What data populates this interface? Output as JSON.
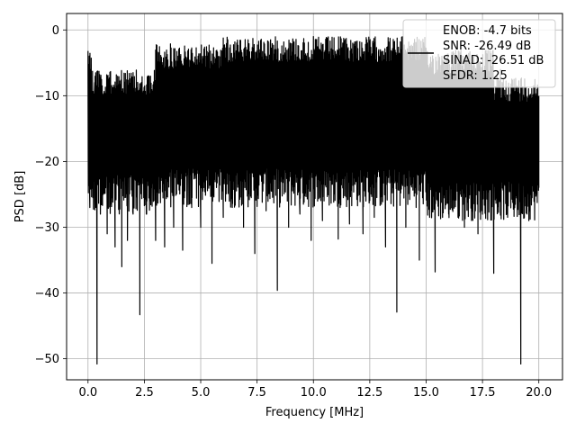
{
  "chart_data": {
    "type": "line",
    "title": "",
    "xlabel": "Frequency [MHz]",
    "ylabel": "PSD [dB]",
    "xlim": [
      -0.95,
      21.05
    ],
    "ylim": [
      -53.2,
      2.5
    ],
    "xticks": [
      "0.0",
      "2.5",
      "5.0",
      "7.5",
      "10.0",
      "12.5",
      "15.0",
      "17.5",
      "20.0"
    ],
    "xtick_values": [
      0,
      2.5,
      5,
      7.5,
      10,
      12.5,
      15,
      17.5,
      20
    ],
    "yticks": [
      "0",
      "−10",
      "−20",
      "−30",
      "−40",
      "−50"
    ],
    "ytick_values": [
      0,
      -10,
      -20,
      -30,
      -40,
      -50
    ],
    "grid": true,
    "line_color": "#000000",
    "legend": {
      "placement": "upper right",
      "entries": [
        "ENOB: -4.7 bits",
        "SNR: -26.49 dB",
        "SINAD: -26.51 dB",
        "SFDR: 1.25"
      ]
    },
    "series": [
      {
        "x_start": 0.0,
        "x_end": 20.0,
        "points": [
          [
            0.0,
            -3.2
          ],
          [
            0.02,
            -20.0
          ],
          [
            0.05,
            -9.5
          ],
          [
            0.08,
            -27.0
          ],
          [
            0.12,
            -12.0
          ],
          [
            0.2,
            -18.0
          ],
          [
            0.25,
            -25.0
          ],
          [
            0.3,
            -8.0
          ],
          [
            0.35,
            -27.0
          ],
          [
            0.4,
            -50.8
          ],
          [
            0.45,
            -14.0
          ],
          [
            0.55,
            -28.0
          ],
          [
            0.7,
            -12.5
          ],
          [
            0.85,
            -31.0
          ],
          [
            1.0,
            -14.0
          ],
          [
            1.2,
            -33.0
          ],
          [
            1.4,
            -12.0
          ],
          [
            1.5,
            -36.0
          ],
          [
            1.6,
            -13.0
          ],
          [
            1.75,
            -32.0
          ],
          [
            1.9,
            -10.0
          ],
          [
            2.0,
            -28.0
          ],
          [
            2.15,
            -14.0
          ],
          [
            2.3,
            -43.3
          ],
          [
            2.45,
            -11.5
          ],
          [
            2.6,
            -28.0
          ],
          [
            2.8,
            -8.5
          ],
          [
            3.0,
            -32.0
          ],
          [
            3.2,
            -9.0
          ],
          [
            3.4,
            -33.0
          ],
          [
            3.6,
            -8.0
          ],
          [
            3.8,
            -30.0
          ],
          [
            4.0,
            -7.0
          ],
          [
            4.2,
            -33.5
          ],
          [
            4.4,
            -5.0
          ],
          [
            4.6,
            -27.0
          ],
          [
            4.8,
            -4.5
          ],
          [
            5.0,
            -30.0
          ],
          [
            5.2,
            -4.0
          ],
          [
            5.5,
            -35.5
          ],
          [
            5.7,
            -4.0
          ],
          [
            6.0,
            -28.5
          ],
          [
            6.2,
            -1.5
          ],
          [
            6.4,
            -27.0
          ],
          [
            6.6,
            -2.0
          ],
          [
            6.9,
            -30.0
          ],
          [
            7.1,
            -1.5
          ],
          [
            7.4,
            -34.0
          ],
          [
            7.6,
            -3.0
          ],
          [
            7.9,
            -27.5
          ],
          [
            8.1,
            -1.5
          ],
          [
            8.4,
            -39.6
          ],
          [
            8.6,
            -3.0
          ],
          [
            8.9,
            -30.0
          ],
          [
            9.1,
            -1.8
          ],
          [
            9.4,
            -28.0
          ],
          [
            9.6,
            -2.0
          ],
          [
            9.9,
            -32.0
          ],
          [
            10.1,
            -1.5
          ],
          [
            10.4,
            -29.0
          ],
          [
            10.6,
            -2.0
          ],
          [
            11.1,
            -31.8
          ],
          [
            11.3,
            -2.0
          ],
          [
            11.6,
            -29.5
          ],
          [
            11.8,
            -2.5
          ],
          [
            12.2,
            -31.0
          ],
          [
            12.4,
            -2.0
          ],
          [
            12.7,
            -28.5
          ],
          [
            12.9,
            -3.0
          ],
          [
            13.2,
            -33.0
          ],
          [
            13.4,
            -2.5
          ],
          [
            13.7,
            -42.9
          ],
          [
            13.9,
            -3.0
          ],
          [
            14.1,
            -30.0
          ],
          [
            14.4,
            -2.5
          ],
          [
            14.7,
            -35.0
          ],
          [
            15.0,
            -2.8
          ],
          [
            15.4,
            -36.8
          ],
          [
            15.7,
            -4.0
          ],
          [
            16.0,
            -28.0
          ],
          [
            16.3,
            -4.5
          ],
          [
            16.7,
            -30.0
          ],
          [
            17.0,
            -5.0
          ],
          [
            17.3,
            -31.0
          ],
          [
            17.6,
            -5.5
          ],
          [
            18.0,
            -37.0
          ],
          [
            18.3,
            -6.0
          ],
          [
            18.6,
            -28.0
          ],
          [
            18.9,
            -7.5
          ],
          [
            19.2,
            -50.8
          ],
          [
            19.4,
            -9.0
          ],
          [
            19.6,
            -27.5
          ],
          [
            19.8,
            -11.0
          ],
          [
            20.0,
            -24.0
          ]
        ]
      }
    ]
  }
}
